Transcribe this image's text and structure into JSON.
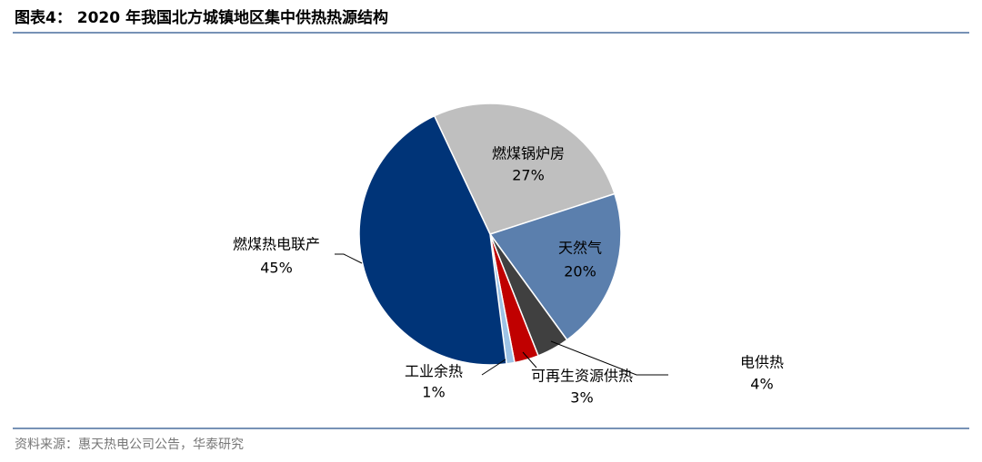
{
  "chart_data": {
    "type": "pie",
    "title": "图表4： 2020 年我国北方城镇地区集中供热热源结构",
    "source": "资料来源：惠天热电公司公告，华泰研究",
    "categories": [
      "燃煤锅炉房",
      "天然气",
      "电供热",
      "可再生资源供热",
      "工业余热",
      "燃煤热电联产"
    ],
    "values": [
      27,
      20,
      4,
      3,
      1,
      45
    ],
    "value_labels": [
      "27%",
      "20%",
      "4%",
      "3%",
      "1%",
      "45%"
    ],
    "colors": [
      "#bfbfbf",
      "#5b7fad",
      "#404040",
      "#c00000",
      "#9dc3e6",
      "#003478"
    ]
  }
}
